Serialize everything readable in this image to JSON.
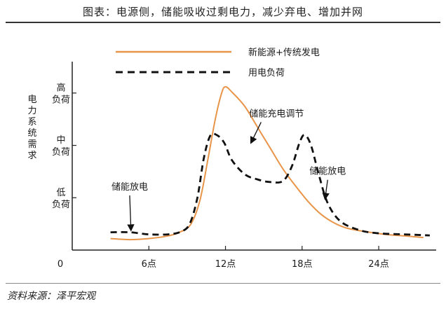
{
  "figure_title": "图表：电源侧，储能吸收过剩电力，减少弃电、增加并网",
  "source": "资料来源：泽平宏观",
  "chart_data": {
    "type": "line",
    "xlabel": "",
    "ylabel": "电力系统需求",
    "x_ticks": [
      {
        "label": "0",
        "value": 0
      },
      {
        "label": "6点",
        "value": 6
      },
      {
        "label": "12点",
        "value": 12
      },
      {
        "label": "18点",
        "value": 18
      },
      {
        "label": "24点",
        "value": 24
      }
    ],
    "y_ticks": [
      {
        "label": "高负荷",
        "value": 3
      },
      {
        "label": "中负荷",
        "value": 2
      },
      {
        "label": "低负荷",
        "value": 1
      }
    ],
    "xlim": [
      0,
      28.5
    ],
    "ylim": [
      0,
      3.6
    ],
    "legend": {
      "placement": "top",
      "entries": [
        "新能源+传统发电",
        "用电负荷"
      ]
    },
    "series": [
      {
        "name": "新能源+传统发电",
        "style": "solid",
        "color": "#e8954a",
        "points": [
          [
            3.0,
            0.22
          ],
          [
            4.5,
            0.2
          ],
          [
            6.0,
            0.22
          ],
          [
            7.5,
            0.27
          ],
          [
            8.5,
            0.35
          ],
          [
            9.3,
            0.5
          ],
          [
            10.0,
            0.95
          ],
          [
            10.6,
            1.7
          ],
          [
            11.2,
            2.5
          ],
          [
            11.7,
            3.0
          ],
          [
            12.0,
            3.12
          ],
          [
            12.5,
            3.02
          ],
          [
            13.5,
            2.75
          ],
          [
            14.5,
            2.35
          ],
          [
            15.5,
            1.95
          ],
          [
            16.5,
            1.55
          ],
          [
            17.5,
            1.22
          ],
          [
            18.5,
            0.92
          ],
          [
            19.5,
            0.68
          ],
          [
            20.5,
            0.52
          ],
          [
            21.5,
            0.42
          ],
          [
            23.0,
            0.35
          ],
          [
            24.5,
            0.3
          ],
          [
            26.0,
            0.27
          ],
          [
            27.5,
            0.24
          ]
        ]
      },
      {
        "name": "用电负荷",
        "style": "dashed",
        "color": "#111111",
        "points": [
          [
            3.0,
            0.34
          ],
          [
            4.5,
            0.34
          ],
          [
            6.0,
            0.3
          ],
          [
            7.5,
            0.3
          ],
          [
            8.5,
            0.35
          ],
          [
            9.2,
            0.5
          ],
          [
            9.8,
            1.0
          ],
          [
            10.3,
            1.75
          ],
          [
            10.8,
            2.18
          ],
          [
            11.3,
            2.2
          ],
          [
            11.9,
            2.05
          ],
          [
            12.5,
            1.72
          ],
          [
            13.5,
            1.45
          ],
          [
            14.5,
            1.35
          ],
          [
            15.5,
            1.3
          ],
          [
            16.5,
            1.32
          ],
          [
            17.2,
            1.6
          ],
          [
            17.8,
            2.05
          ],
          [
            18.2,
            2.2
          ],
          [
            18.7,
            2.0
          ],
          [
            19.3,
            1.45
          ],
          [
            20.0,
            0.9
          ],
          [
            21.0,
            0.55
          ],
          [
            22.5,
            0.38
          ],
          [
            24.0,
            0.32
          ],
          [
            26.0,
            0.3
          ],
          [
            28.0,
            0.28
          ]
        ]
      }
    ],
    "annotations": [
      {
        "text": "储能放电",
        "x": 4.5,
        "y": 1.15,
        "arrow_to": [
          4.6,
          0.38
        ]
      },
      {
        "text": "储能充电调节",
        "x": 16.0,
        "y": 2.55,
        "arrow_to": [
          14.0,
          2.05
        ]
      },
      {
        "text": "储能放电",
        "x": 20.0,
        "y": 1.45,
        "arrow_to": [
          19.8,
          0.98
        ]
      }
    ],
    "grid": false
  }
}
